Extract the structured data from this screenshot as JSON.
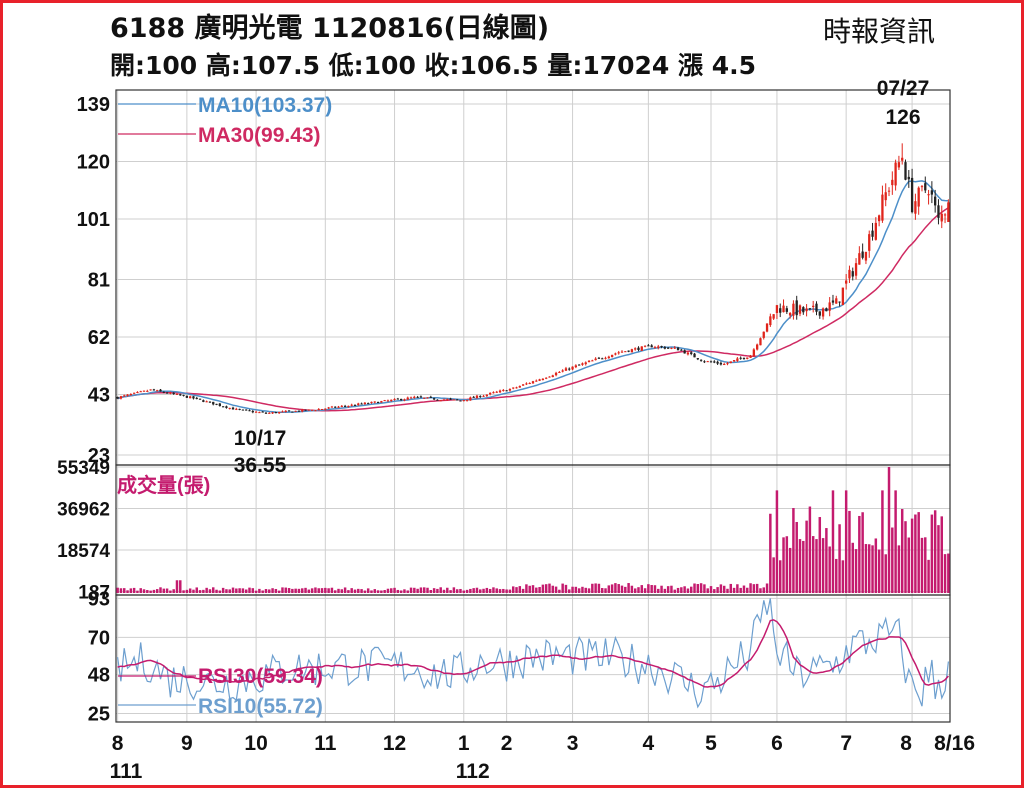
{
  "header": {
    "title": "6188  廣明光電 1120816(日線圖)",
    "quote": "開:100 高:107.5 低:100 收:106.5 量:17024 漲 4.5",
    "source": "時報資訊"
  },
  "colors": {
    "frame": "#e8212a",
    "up": "#e0241b",
    "down": "#222222",
    "ma10": "#4d8fc9",
    "ma30": "#cf2a62",
    "volume": "#c41b6e",
    "rsi30": "#c41b6e",
    "rsi10": "#6d9fcf",
    "grid": "#cfcfcf"
  },
  "chart_data": [
    {
      "type": "candlestick",
      "panel": "price",
      "y_ticks": [
        "139",
        "120",
        "101",
        "81",
        "62",
        "43",
        "23"
      ],
      "y_tick_values": [
        139,
        120,
        101,
        81,
        62,
        43,
        23
      ],
      "ylim": [
        23,
        139
      ],
      "series": [
        {
          "name": "MA10(103.37)",
          "last": 103.37
        },
        {
          "name": "MA30(99.43)",
          "last": 99.43
        }
      ],
      "annotations": [
        {
          "date": "07/27",
          "value": "126"
        },
        {
          "date": "10/17",
          "value": "36.55"
        }
      ],
      "key_points": [
        {
          "x": "111/08",
          "close": 42
        },
        {
          "x": "111/10/17",
          "low": 36.55
        },
        {
          "x": "111/12",
          "close": 42
        },
        {
          "x": "112/02",
          "close": 45
        },
        {
          "x": "112/04",
          "close": 59
        },
        {
          "x": "112/05",
          "close": 53
        },
        {
          "x": "112/06",
          "close": 72
        },
        {
          "x": "112/07",
          "close": 80
        },
        {
          "x": "112/07/27",
          "high": 126
        },
        {
          "x": "112/08/16",
          "open": 100,
          "high": 107.5,
          "low": 100,
          "close": 106.5
        }
      ]
    },
    {
      "type": "bar",
      "panel": "volume",
      "title": "成交量(張)",
      "y_ticks": [
        "55349",
        "36962",
        "18574",
        "187"
      ],
      "y_tick_values": [
        55349,
        36962,
        18574,
        187
      ],
      "ylim": [
        0,
        55349
      ],
      "last_value": 17024
    },
    {
      "type": "line",
      "panel": "rsi",
      "y_ticks": [
        "93",
        "70",
        "48",
        "25"
      ],
      "y_tick_values": [
        93,
        70,
        48,
        25
      ],
      "ylim": [
        20,
        95
      ],
      "series": [
        {
          "name": "RSI30(59.34)",
          "last": 59.34
        },
        {
          "name": "RSI10(55.72)",
          "last": 55.72
        }
      ]
    }
  ],
  "x_axis": {
    "month_ticks": [
      {
        "label": "8",
        "index": 0
      },
      {
        "label": "9",
        "index": 21
      },
      {
        "label": "10",
        "index": 42
      },
      {
        "label": "11",
        "index": 63
      },
      {
        "label": "12",
        "index": 84
      },
      {
        "label": "1",
        "index": 105
      },
      {
        "label": "2",
        "index": 118
      },
      {
        "label": "3",
        "index": 138
      },
      {
        "label": "4",
        "index": 161
      },
      {
        "label": "5",
        "index": 180
      },
      {
        "label": "6",
        "index": 200
      },
      {
        "label": "7",
        "index": 221
      },
      {
        "label": "8",
        "index": 241
      }
    ],
    "last_label": "8/16",
    "year_labels": [
      {
        "label": "111",
        "index": 0
      },
      {
        "label": "112",
        "index": 105
      }
    ],
    "total_days": 253
  }
}
